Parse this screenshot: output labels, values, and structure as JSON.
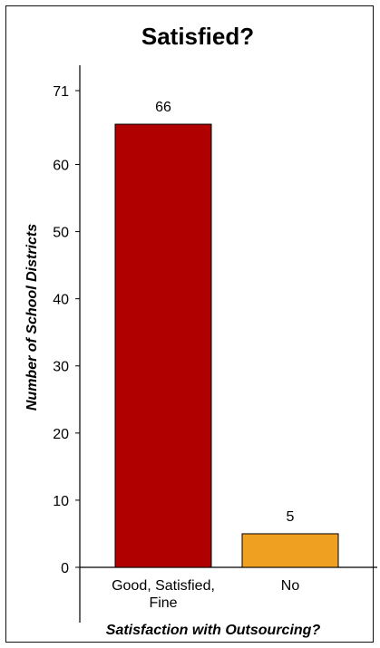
{
  "chart_data": {
    "type": "bar",
    "title": "Satisfied?",
    "xlabel": "Satisfaction with Outsourcing?",
    "ylabel": "Number of School Districts",
    "categories": [
      [
        "Good, Satisfied,",
        "Fine"
      ],
      [
        "No"
      ]
    ],
    "values": [
      66,
      5
    ],
    "data_labels": [
      "66",
      "5"
    ],
    "colors": [
      "#B00000",
      "#F0A020"
    ],
    "ylim": [
      0,
      71
    ],
    "yticks": [
      0,
      10,
      20,
      30,
      40,
      50,
      60,
      71
    ],
    "ytick_labels": [
      "0",
      "10",
      "20",
      "30",
      "40",
      "50",
      "60",
      "71"
    ],
    "grid": false,
    "legend": "none"
  }
}
